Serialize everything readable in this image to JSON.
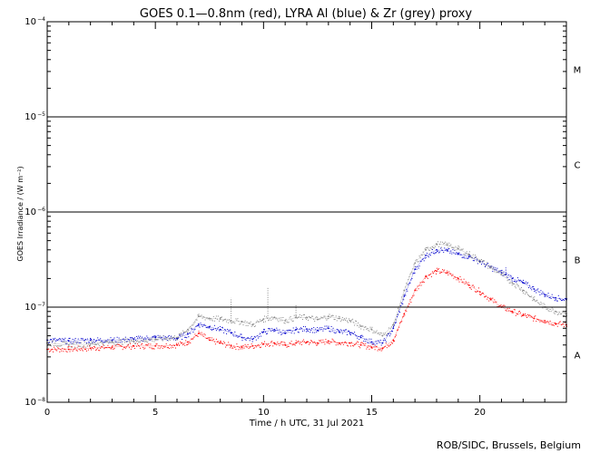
{
  "chart_data": {
    "type": "scatter",
    "title": "GOES 0.1—0.8nm (red), LYRA Al (blue) & Zr (grey) proxy",
    "xlabel": "Time / h UTC, 31 Jul 2021",
    "ylabel": "GOES Irradiance / (W m⁻²)",
    "credit": "ROB/SIDC, Brussels, Belgium",
    "xlim": [
      0,
      24
    ],
    "ylim_log10": [
      -8,
      -4
    ],
    "yscale": "log",
    "x_ticks": [
      {
        "value": 0,
        "label": "0"
      },
      {
        "value": 5,
        "label": "5"
      },
      {
        "value": 10,
        "label": "10"
      },
      {
        "value": 15,
        "label": "15"
      },
      {
        "value": 20,
        "label": "20"
      }
    ],
    "y_ticks": [
      {
        "exponent": -8,
        "base": "10",
        "exp": "−8"
      },
      {
        "exponent": -7,
        "base": "10",
        "exp": "−7"
      },
      {
        "exponent": -6,
        "base": "10",
        "exp": "−6"
      },
      {
        "exponent": -5,
        "base": "10",
        "exp": "−5"
      },
      {
        "exponent": -4,
        "base": "10",
        "exp": "−4"
      }
    ],
    "flare_class_lines": [
      -7,
      -6,
      -5
    ],
    "flare_classes": [
      {
        "label": "A",
        "center_log10": -7.5
      },
      {
        "label": "B",
        "center_log10": -6.5
      },
      {
        "label": "C",
        "center_log10": -5.5
      },
      {
        "label": "M",
        "center_log10": -4.5
      }
    ],
    "series": [
      {
        "name": "GOES 0.1—0.8nm",
        "color": "#ff0000",
        "points": [
          [
            0,
            3.6e-08
          ],
          [
            1,
            3.6e-08
          ],
          [
            2,
            3.7e-08
          ],
          [
            3,
            3.8e-08
          ],
          [
            4,
            3.9e-08
          ],
          [
            5,
            3.9e-08
          ],
          [
            6,
            4e-08
          ],
          [
            6.5,
            4.3e-08
          ],
          [
            7,
            5.3e-08
          ],
          [
            7.5,
            4.5e-08
          ],
          [
            8,
            4.2e-08
          ],
          [
            8.5,
            3.9e-08
          ],
          [
            9,
            3.8e-08
          ],
          [
            9.5,
            3.9e-08
          ],
          [
            10,
            4.1e-08
          ],
          [
            10.5,
            4.2e-08
          ],
          [
            11,
            4e-08
          ],
          [
            11.5,
            4.2e-08
          ],
          [
            12,
            4.3e-08
          ],
          [
            12.5,
            4.2e-08
          ],
          [
            13,
            4.4e-08
          ],
          [
            13.5,
            4.2e-08
          ],
          [
            14,
            4.2e-08
          ],
          [
            14.5,
            4e-08
          ],
          [
            15,
            3.8e-08
          ],
          [
            15.5,
            3.7e-08
          ],
          [
            16,
            4.5e-08
          ],
          [
            16.5,
            8.5e-08
          ],
          [
            17,
            1.5e-07
          ],
          [
            17.5,
            2.1e-07
          ],
          [
            18,
            2.4e-07
          ],
          [
            18.5,
            2.3e-07
          ],
          [
            19,
            2e-07
          ],
          [
            19.5,
            1.7e-07
          ],
          [
            20,
            1.45e-07
          ],
          [
            20.5,
            1.2e-07
          ],
          [
            21,
            1e-07
          ],
          [
            21.5,
            9e-08
          ],
          [
            22,
            8.2e-08
          ],
          [
            22.5,
            7.6e-08
          ],
          [
            23,
            7.2e-08
          ],
          [
            23.5,
            6.7e-08
          ],
          [
            24,
            6.5e-08
          ]
        ]
      },
      {
        "name": "LYRA Al proxy",
        "color": "#0000cc",
        "points": [
          [
            0,
            4.5e-08
          ],
          [
            1,
            4.4e-08
          ],
          [
            2,
            4.5e-08
          ],
          [
            3,
            4.5e-08
          ],
          [
            4,
            4.6e-08
          ],
          [
            5,
            4.8e-08
          ],
          [
            6,
            4.7e-08
          ],
          [
            6.5,
            5.2e-08
          ],
          [
            7,
            6.6e-08
          ],
          [
            7.5,
            6.2e-08
          ],
          [
            8,
            5.8e-08
          ],
          [
            8.5,
            5.4e-08
          ],
          [
            9,
            4.8e-08
          ],
          [
            9.5,
            4.6e-08
          ],
          [
            10,
            5.5e-08
          ],
          [
            10.5,
            5.8e-08
          ],
          [
            11,
            5.3e-08
          ],
          [
            11.5,
            5.8e-08
          ],
          [
            12,
            5.9e-08
          ],
          [
            12.5,
            5.7e-08
          ],
          [
            13,
            6e-08
          ],
          [
            13.5,
            5.5e-08
          ],
          [
            14,
            5.4e-08
          ],
          [
            14.5,
            4.8e-08
          ],
          [
            15,
            4.3e-08
          ],
          [
            15.5,
            4.2e-08
          ],
          [
            16,
            6e-08
          ],
          [
            16.5,
            1.3e-07
          ],
          [
            17,
            2.5e-07
          ],
          [
            17.5,
            3.5e-07
          ],
          [
            18,
            4e-07
          ],
          [
            18.5,
            3.9e-07
          ],
          [
            19,
            3.6e-07
          ],
          [
            19.5,
            3.4e-07
          ],
          [
            20,
            3e-07
          ],
          [
            20.5,
            2.6e-07
          ],
          [
            21,
            2.3e-07
          ],
          [
            21.5,
            2e-07
          ],
          [
            22,
            1.8e-07
          ],
          [
            22.5,
            1.55e-07
          ],
          [
            23,
            1.35e-07
          ],
          [
            23.5,
            1.25e-07
          ],
          [
            24,
            1.2e-07
          ]
        ]
      },
      {
        "name": "LYRA Zr proxy",
        "color": "#888888",
        "points": [
          [
            0,
            4.2e-08
          ],
          [
            1,
            4e-08
          ],
          [
            2,
            4.1e-08
          ],
          [
            3,
            4.3e-08
          ],
          [
            4,
            4.4e-08
          ],
          [
            5,
            4.6e-08
          ],
          [
            6,
            4.8e-08
          ],
          [
            6.5,
            5.8e-08
          ],
          [
            7,
            8e-08
          ],
          [
            7.5,
            7.6e-08
          ],
          [
            8,
            7.5e-08
          ],
          [
            8.5,
            7.2e-08
          ],
          [
            9,
            7e-08
          ],
          [
            9.5,
            6.5e-08
          ],
          [
            10,
            7.5e-08
          ],
          [
            10.5,
            7.8e-08
          ],
          [
            11,
            7.2e-08
          ],
          [
            11.5,
            7.8e-08
          ],
          [
            12,
            7.8e-08
          ],
          [
            12.5,
            7.4e-08
          ],
          [
            13,
            8e-08
          ],
          [
            13.5,
            7.6e-08
          ],
          [
            14,
            7.2e-08
          ],
          [
            14.5,
            6.3e-08
          ],
          [
            15,
            5.8e-08
          ],
          [
            15.5,
            5e-08
          ],
          [
            16,
            6.5e-08
          ],
          [
            16.5,
            1.5e-07
          ],
          [
            17,
            2.9e-07
          ],
          [
            17.5,
            4e-07
          ],
          [
            18,
            4.6e-07
          ],
          [
            18.5,
            4.5e-07
          ],
          [
            19,
            4.1e-07
          ],
          [
            19.5,
            3.6e-07
          ],
          [
            20,
            3.1e-07
          ],
          [
            20.5,
            2.6e-07
          ],
          [
            21,
            2.2e-07
          ],
          [
            21.5,
            1.8e-07
          ],
          [
            22,
            1.5e-07
          ],
          [
            22.5,
            1.2e-07
          ],
          [
            23,
            1e-07
          ],
          [
            23.5,
            9e-08
          ],
          [
            24,
            8.5e-08
          ]
        ]
      }
    ],
    "spikes": [
      {
        "series": 2,
        "x": 8.5,
        "value": 1.25e-07
      },
      {
        "series": 2,
        "x": 10.2,
        "value": 1.6e-07
      },
      {
        "series": 2,
        "x": 11.5,
        "value": 1.05e-07
      },
      {
        "series": 1,
        "x": 21.2,
        "value": 2.6e-07
      }
    ]
  }
}
